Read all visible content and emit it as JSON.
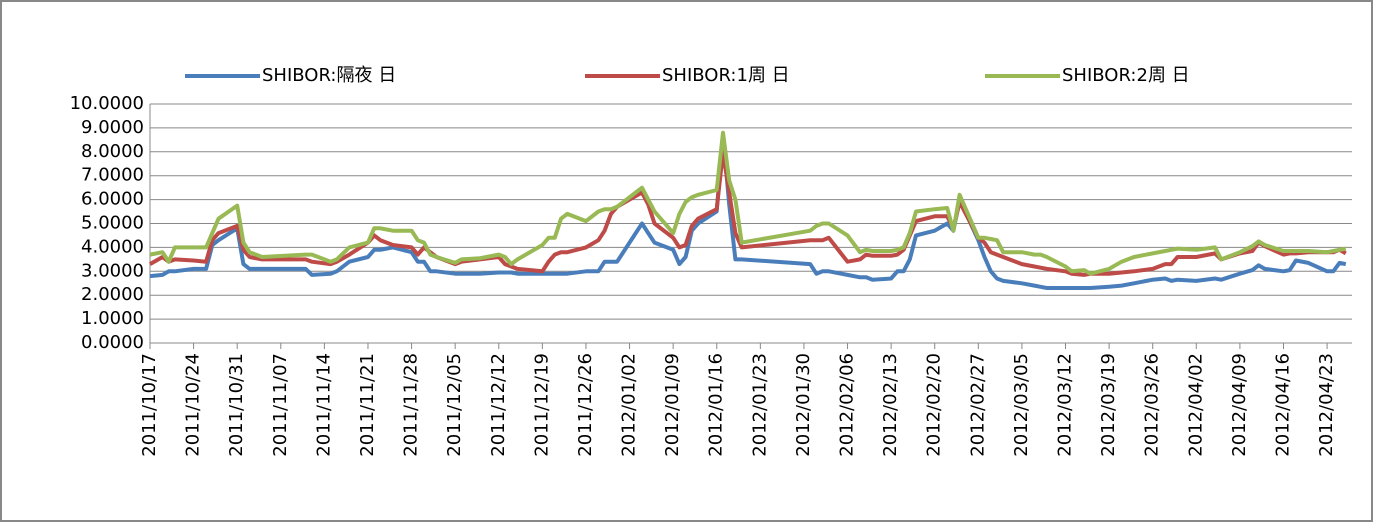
{
  "chart_data": {
    "type": "line",
    "x": [
      "2011/10/17",
      "2011/10/19",
      "2011/10/20",
      "2011/10/21",
      "2011/10/24",
      "2011/10/26",
      "2011/10/27",
      "2011/10/28",
      "2011/10/31",
      "2011/11/01",
      "2011/11/02",
      "2011/11/04",
      "2011/11/11",
      "2011/11/12",
      "2011/11/15",
      "2011/11/16",
      "2011/11/18",
      "2011/11/21",
      "2011/11/22",
      "2011/11/23",
      "2011/11/25",
      "2011/11/28",
      "2011/11/29",
      "2011/11/30",
      "2011/12/01",
      "2011/12/02",
      "2011/12/05",
      "2011/12/06",
      "2011/12/09",
      "2011/12/12",
      "2011/12/13",
      "2011/12/14",
      "2011/12/15",
      "2011/12/19",
      "2011/12/20",
      "2011/12/21",
      "2011/12/22",
      "2011/12/23",
      "2011/12/26",
      "2011/12/28",
      "2011/12/29",
      "2011/12/30",
      "2011/12/31",
      "2012/01/04",
      "2012/01/05",
      "2012/01/06",
      "2012/01/09",
      "2012/01/10",
      "2012/01/11",
      "2012/01/12",
      "2012/01/13",
      "2012/01/16",
      "2012/01/17",
      "2012/01/18",
      "2012/01/19",
      "2012/01/20",
      "2012/01/31",
      "2012/02/01",
      "2012/02/02",
      "2012/02/03",
      "2012/02/06",
      "2012/02/08",
      "2012/02/09",
      "2012/02/10",
      "2012/02/13",
      "2012/02/14",
      "2012/02/15",
      "2012/02/16",
      "2012/02/17",
      "2012/02/20",
      "2012/02/22",
      "2012/02/23",
      "2012/02/24",
      "2012/02/27",
      "2012/02/28",
      "2012/02/29",
      "2012/03/01",
      "2012/03/02",
      "2012/03/05",
      "2012/03/07",
      "2012/03/08",
      "2012/03/09",
      "2012/03/12",
      "2012/03/13",
      "2012/03/15",
      "2012/03/16",
      "2012/03/19",
      "2012/03/21",
      "2012/03/23",
      "2012/03/26",
      "2012/03/28",
      "2012/03/29",
      "2012/03/30",
      "2012/04/02",
      "2012/04/05",
      "2012/04/06",
      "2012/04/09",
      "2012/04/11",
      "2012/04/12",
      "2012/04/13",
      "2012/04/16",
      "2012/04/17",
      "2012/04/18",
      "2012/04/20",
      "2012/04/23",
      "2012/04/24",
      "2012/04/25",
      "2012/04/26"
    ],
    "series": [
      {
        "name": "SHIBOR:隔夜 日",
        "color": "#4a7ebb",
        "values": [
          2.8,
          2.85,
          3.0,
          3.0,
          3.1,
          3.1,
          4.1,
          4.3,
          4.8,
          3.3,
          3.1,
          3.1,
          3.1,
          2.85,
          2.9,
          3.0,
          3.4,
          3.6,
          3.9,
          3.9,
          4.0,
          3.8,
          3.4,
          3.4,
          3.0,
          3.0,
          2.9,
          2.9,
          2.9,
          2.95,
          2.95,
          2.95,
          2.9,
          2.9,
          2.9,
          2.9,
          2.9,
          2.9,
          3.0,
          3.0,
          3.4,
          3.4,
          3.4,
          5.0,
          4.6,
          4.2,
          3.9,
          3.3,
          3.6,
          4.7,
          5.0,
          5.5,
          8.7,
          5.8,
          3.5,
          3.5,
          3.3,
          2.9,
          3.0,
          3.0,
          2.85,
          2.75,
          2.75,
          2.65,
          2.7,
          3.0,
          3.0,
          3.5,
          4.5,
          4.7,
          5.0,
          4.7,
          6.0,
          4.3,
          3.6,
          3.0,
          2.7,
          2.6,
          2.5,
          2.4,
          2.35,
          2.3,
          2.3,
          2.3,
          2.3,
          2.3,
          2.35,
          2.4,
          2.5,
          2.65,
          2.7,
          2.6,
          2.65,
          2.6,
          2.7,
          2.65,
          2.9,
          3.05,
          3.25,
          3.1,
          3.0,
          3.05,
          3.45,
          3.35,
          3.0,
          3.0,
          3.35,
          3.3
        ]
      },
      {
        "name": "SHIBOR:1周 日",
        "color": "#be4b48",
        "values": [
          3.3,
          3.6,
          3.4,
          3.5,
          3.45,
          3.4,
          4.3,
          4.6,
          4.9,
          3.9,
          3.6,
          3.5,
          3.5,
          3.4,
          3.3,
          3.4,
          3.7,
          4.2,
          4.5,
          4.3,
          4.1,
          4.0,
          3.7,
          4.0,
          3.8,
          3.6,
          3.3,
          3.4,
          3.5,
          3.6,
          3.3,
          3.2,
          3.1,
          3.0,
          3.4,
          3.7,
          3.8,
          3.8,
          4.0,
          4.3,
          4.7,
          5.4,
          5.7,
          6.3,
          5.8,
          5.0,
          4.4,
          4.0,
          4.1,
          4.9,
          5.2,
          5.6,
          8.0,
          6.3,
          4.6,
          4.0,
          4.3,
          4.3,
          4.3,
          4.4,
          3.4,
          3.5,
          3.7,
          3.65,
          3.65,
          3.7,
          3.9,
          4.5,
          5.1,
          5.3,
          5.3,
          4.8,
          5.9,
          4.4,
          4.2,
          3.8,
          3.7,
          3.6,
          3.3,
          3.2,
          3.15,
          3.1,
          3.0,
          2.9,
          2.85,
          2.9,
          2.9,
          2.95,
          3.0,
          3.1,
          3.3,
          3.3,
          3.6,
          3.6,
          3.75,
          3.5,
          3.75,
          3.85,
          4.2,
          4.05,
          3.7,
          3.75,
          3.75,
          3.8,
          3.8,
          3.8,
          3.9,
          3.75
        ]
      },
      {
        "name": "SHIBOR:2周 日",
        "color": "#98b954",
        "values": [
          3.7,
          3.8,
          3.4,
          4.0,
          4.0,
          4.0,
          4.6,
          5.2,
          5.75,
          4.2,
          3.8,
          3.6,
          3.7,
          3.7,
          3.4,
          3.5,
          4.0,
          4.2,
          4.8,
          4.8,
          4.7,
          4.7,
          4.3,
          4.2,
          3.7,
          3.6,
          3.35,
          3.5,
          3.55,
          3.7,
          3.6,
          3.3,
          3.5,
          4.1,
          4.4,
          4.4,
          5.2,
          5.4,
          5.1,
          5.5,
          5.6,
          5.6,
          5.7,
          6.5,
          6.0,
          5.5,
          4.6,
          5.4,
          5.9,
          6.1,
          6.2,
          6.4,
          8.8,
          6.8,
          6.0,
          4.2,
          4.7,
          4.9,
          5.0,
          5.0,
          4.5,
          3.8,
          3.9,
          3.85,
          3.85,
          3.9,
          4.0,
          4.6,
          5.5,
          5.6,
          5.65,
          4.7,
          6.2,
          4.4,
          4.4,
          4.35,
          4.3,
          3.8,
          3.8,
          3.7,
          3.7,
          3.6,
          3.2,
          3.0,
          3.05,
          2.9,
          3.1,
          3.4,
          3.6,
          3.75,
          3.85,
          3.9,
          3.95,
          3.9,
          4.0,
          3.5,
          3.8,
          4.05,
          4.25,
          4.1,
          3.85,
          3.85,
          3.85,
          3.85,
          3.8,
          3.85,
          3.9,
          3.95
        ]
      }
    ],
    "xlim": [
      "2011/10/17",
      "2012/04/27"
    ],
    "xticks": [
      "2011/10/17",
      "2011/10/24",
      "2011/10/31",
      "2011/11/07",
      "2011/11/14",
      "2011/11/21",
      "2011/11/28",
      "2011/12/05",
      "2011/12/12",
      "2011/12/19",
      "2011/12/26",
      "2012/01/02",
      "2012/01/09",
      "2012/01/16",
      "2012/01/23",
      "2012/01/30",
      "2012/02/06",
      "2012/02/13",
      "2012/02/20",
      "2012/02/27",
      "2012/03/05",
      "2012/03/12",
      "2012/03/19",
      "2012/03/26",
      "2012/04/02",
      "2012/04/09",
      "2012/04/16",
      "2012/04/23"
    ],
    "ylim": [
      0,
      10
    ],
    "yticks": [
      {
        "value": 0,
        "label": "0.0000"
      },
      {
        "value": 1,
        "label": "1.0000"
      },
      {
        "value": 2,
        "label": "2.0000"
      },
      {
        "value": 3,
        "label": "3.0000"
      },
      {
        "value": 4,
        "label": "4.0000"
      },
      {
        "value": 5,
        "label": "5.0000"
      },
      {
        "value": 6,
        "label": "6.0000"
      },
      {
        "value": 7,
        "label": "7.0000"
      },
      {
        "value": 8,
        "label": "8.0000"
      },
      {
        "value": 9,
        "label": "9.0000"
      },
      {
        "value": 10,
        "label": "10.0000"
      }
    ],
    "grid": true,
    "legend": "top"
  }
}
